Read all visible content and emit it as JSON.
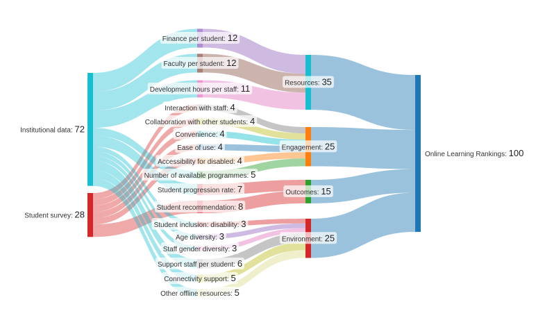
{
  "chart_data": {
    "type": "sankey",
    "nodes": [
      {
        "id": "inst",
        "label": "Institutional data",
        "value": 72,
        "column": 0,
        "color": "#17becf"
      },
      {
        "id": "survey",
        "label": "Student survey",
        "value": 28,
        "column": 0,
        "color": "#d62728"
      },
      {
        "id": "finance",
        "label": "Finance per student",
        "value": 12,
        "column": 1,
        "color": "#9467bd"
      },
      {
        "id": "faculty",
        "label": "Faculty per student",
        "value": 12,
        "column": 1,
        "color": "#8c564b"
      },
      {
        "id": "devhours",
        "label": "Development hours per staff",
        "value": 11,
        "column": 1,
        "color": "#e377c2"
      },
      {
        "id": "interaction",
        "label": "Interaction with staff",
        "value": 4,
        "column": 1,
        "color": "#7f7f7f"
      },
      {
        "id": "collab",
        "label": "Collaboration with other students",
        "value": 4,
        "column": 1,
        "color": "#bcbd22"
      },
      {
        "id": "convenience",
        "label": "Convenience",
        "value": 4,
        "column": 1,
        "color": "#17becf"
      },
      {
        "id": "ease",
        "label": "Ease of use",
        "value": 4,
        "column": 1,
        "color": "#1f77b4"
      },
      {
        "id": "access",
        "label": "Accessibility for disabled",
        "value": 4,
        "column": 1,
        "color": "#ff7f0e"
      },
      {
        "id": "programmes",
        "label": "Number of available programmes",
        "value": 5,
        "column": 1,
        "color": "#2ca02c"
      },
      {
        "id": "progression",
        "label": "Student progression rate",
        "value": 7,
        "column": 1,
        "color": "#d62728"
      },
      {
        "id": "recommend",
        "label": "Student recommendation",
        "value": 8,
        "column": 1,
        "color": "#d62728"
      },
      {
        "id": "inclusion",
        "label": "Student inclusion: disability",
        "value": 3,
        "column": 1,
        "color": "#d62728"
      },
      {
        "id": "age",
        "label": "Age diversity",
        "value": 3,
        "column": 1,
        "color": "#9467bd"
      },
      {
        "id": "gender",
        "label": "Staff gender diversity",
        "value": 3,
        "column": 1,
        "color": "#e377c2"
      },
      {
        "id": "support",
        "label": "Support staff per student",
        "value": 6,
        "column": 1,
        "color": "#7f7f7f"
      },
      {
        "id": "connect",
        "label": "Connectivity support",
        "value": 5,
        "column": 1,
        "color": "#bcbd22"
      },
      {
        "id": "offline",
        "label": "Other offline resources",
        "value": 5,
        "column": 1,
        "color": "#dbdb8d"
      },
      {
        "id": "resources",
        "label": "Resources",
        "value": 35,
        "column": 2,
        "color": "#17becf"
      },
      {
        "id": "engagement",
        "label": "Engagement",
        "value": 25,
        "column": 2,
        "color": "#ff7f0e"
      },
      {
        "id": "outcomes",
        "label": "Outcomes",
        "value": 15,
        "column": 2,
        "color": "#2ca02c"
      },
      {
        "id": "environment",
        "label": "Environment",
        "value": 25,
        "column": 2,
        "color": "#d62728"
      },
      {
        "id": "olr",
        "label": "Online Learning Rankings",
        "value": 100,
        "column": 3,
        "color": "#1f77b4"
      }
    ],
    "links": [
      {
        "source": "inst",
        "target": "finance",
        "value": 12
      },
      {
        "source": "inst",
        "target": "faculty",
        "value": 12
      },
      {
        "source": "inst",
        "target": "devhours",
        "value": 11
      },
      {
        "source": "survey",
        "target": "interaction",
        "value": 4
      },
      {
        "source": "survey",
        "target": "collab",
        "value": 4
      },
      {
        "source": "survey",
        "target": "convenience",
        "value": 4
      },
      {
        "source": "survey",
        "target": "ease",
        "value": 4
      },
      {
        "source": "survey",
        "target": "access",
        "value": 4
      },
      {
        "source": "inst",
        "target": "programmes",
        "value": 5
      },
      {
        "source": "inst",
        "target": "progression",
        "value": 7
      },
      {
        "source": "survey",
        "target": "recommend",
        "value": 8
      },
      {
        "source": "inst",
        "target": "inclusion",
        "value": 3
      },
      {
        "source": "inst",
        "target": "age",
        "value": 3
      },
      {
        "source": "inst",
        "target": "gender",
        "value": 3
      },
      {
        "source": "inst",
        "target": "support",
        "value": 6
      },
      {
        "source": "inst",
        "target": "connect",
        "value": 5
      },
      {
        "source": "inst",
        "target": "offline",
        "value": 5
      },
      {
        "source": "finance",
        "target": "resources",
        "value": 12
      },
      {
        "source": "faculty",
        "target": "resources",
        "value": 12
      },
      {
        "source": "devhours",
        "target": "resources",
        "value": 11
      },
      {
        "source": "interaction",
        "target": "engagement",
        "value": 4
      },
      {
        "source": "collab",
        "target": "engagement",
        "value": 4
      },
      {
        "source": "convenience",
        "target": "engagement",
        "value": 4
      },
      {
        "source": "ease",
        "target": "engagement",
        "value": 4
      },
      {
        "source": "access",
        "target": "engagement",
        "value": 4
      },
      {
        "source": "programmes",
        "target": "engagement",
        "value": 5
      },
      {
        "source": "progression",
        "target": "outcomes",
        "value": 7
      },
      {
        "source": "recommend",
        "target": "outcomes",
        "value": 8
      },
      {
        "source": "inclusion",
        "target": "environment",
        "value": 3
      },
      {
        "source": "age",
        "target": "environment",
        "value": 3
      },
      {
        "source": "gender",
        "target": "environment",
        "value": 3
      },
      {
        "source": "support",
        "target": "environment",
        "value": 6
      },
      {
        "source": "connect",
        "target": "environment",
        "value": 5
      },
      {
        "source": "offline",
        "target": "environment",
        "value": 5
      },
      {
        "source": "resources",
        "target": "olr",
        "value": 35
      },
      {
        "source": "engagement",
        "target": "olr",
        "value": 25
      },
      {
        "source": "outcomes",
        "target": "olr",
        "value": 15
      },
      {
        "source": "environment",
        "target": "olr",
        "value": 25
      }
    ]
  }
}
